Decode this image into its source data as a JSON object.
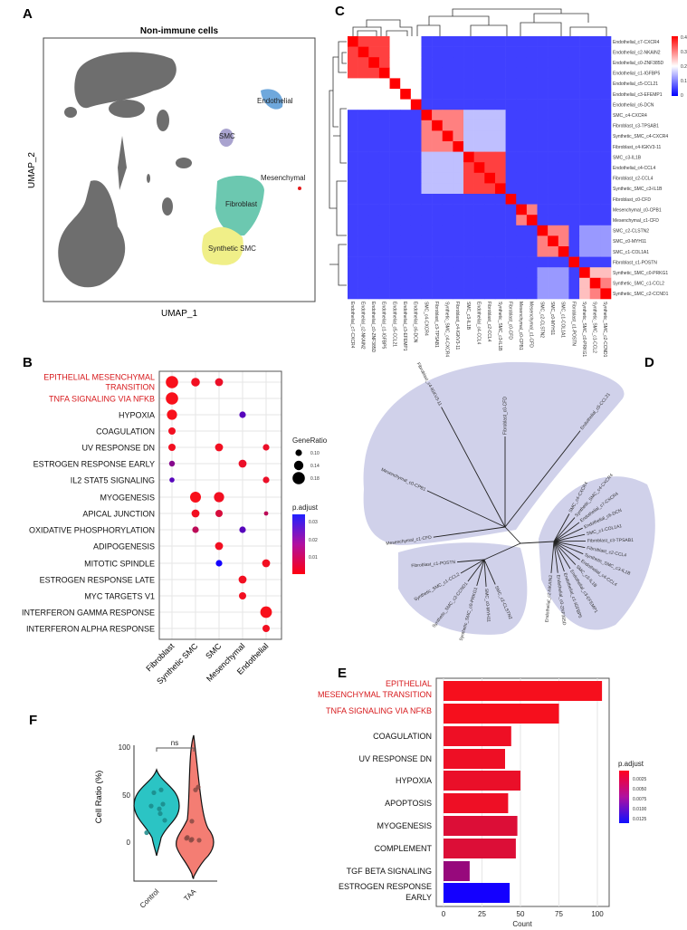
{
  "panels": {
    "a": "A",
    "b": "B",
    "c": "C",
    "d": "D",
    "e": "E",
    "f": "F"
  },
  "umap": {
    "title": "Non-immune cells",
    "xlabel": "UMAP_1",
    "ylabel": "UMAP_2",
    "clusters": [
      "Endothelial",
      "SMC",
      "Mesenchymal",
      "Fibroblast",
      "Synthetic SMC"
    ]
  },
  "chart_data": [
    {
      "type": "scatter",
      "name": "dotplot",
      "columns": [
        "Fibroblast",
        "Synthetic SMC",
        "SMC",
        "Mesenchymal",
        "Endothelial"
      ],
      "rows": [
        "EPITHELIAL MESENCHYMAL",
        "TRANSITION",
        "TNFA SIGNALING VIA NFKB",
        "HYPOXIA",
        "COAGULATION",
        "UV RESPONSE DN",
        "ESTROGEN RESPONSE EARLY",
        "IL2 STAT5 SIGNALING",
        "MYOGENESIS",
        "APICAL JUNCTION",
        "OXIDATIVE PHOSPHORYLATION",
        "ADIPOGENESIS",
        "MITOTIC SPINDLE",
        "ESTROGEN RESPONSE LATE",
        "MYC TARGETS V1",
        "INTERFERON GAMMA RESPONSE",
        "INTERFERON ALPHA RESPONSE"
      ],
      "terms": [
        "EPITHELIAL MESENCHYMAL TRANSITION",
        "TNFA SIGNALING VIA NFKB",
        "HYPOXIA",
        "COAGULATION",
        "UV RESPONSE DN",
        "ESTROGEN RESPONSE EARLY",
        "IL2 STAT5 SIGNALING",
        "MYOGENESIS",
        "APICAL JUNCTION",
        "OXIDATIVE PHOSPHORYLATION",
        "ADIPOGENESIS",
        "MITOTIC SPINDLE",
        "ESTROGEN RESPONSE LATE",
        "MYC TARGETS V1",
        "INTERFERON GAMMA RESPONSE",
        "INTERFERON ALPHA RESPONSE"
      ],
      "points": [
        [
          0,
          0,
          0.18,
          0.001
        ],
        [
          0,
          1,
          0.13,
          0.002
        ],
        [
          0,
          2,
          0.12,
          0.003
        ],
        [
          1,
          0,
          0.18,
          0.001
        ],
        [
          2,
          0,
          0.15,
          0.001
        ],
        [
          2,
          3,
          0.1,
          0.025
        ],
        [
          3,
          0,
          0.11,
          0.002
        ],
        [
          4,
          0,
          0.11,
          0.002
        ],
        [
          4,
          2,
          0.12,
          0.002
        ],
        [
          4,
          4,
          0.1,
          0.003
        ],
        [
          5,
          0,
          0.09,
          0.018
        ],
        [
          5,
          3,
          0.12,
          0.003
        ],
        [
          6,
          0,
          0.08,
          0.025
        ],
        [
          6,
          4,
          0.1,
          0.003
        ],
        [
          7,
          1,
          0.16,
          0.001
        ],
        [
          7,
          2,
          0.15,
          0.002
        ],
        [
          8,
          1,
          0.12,
          0.002
        ],
        [
          8,
          2,
          0.11,
          0.006
        ],
        [
          8,
          4,
          0.07,
          0.01
        ],
        [
          9,
          1,
          0.1,
          0.01
        ],
        [
          9,
          3,
          0.1,
          0.025
        ],
        [
          10,
          2,
          0.12,
          0.002
        ],
        [
          11,
          2,
          0.1,
          0.035
        ],
        [
          11,
          4,
          0.12,
          0.002
        ],
        [
          12,
          3,
          0.12,
          0.002
        ],
        [
          13,
          3,
          0.11,
          0.002
        ],
        [
          14,
          4,
          0.17,
          0.001
        ],
        [
          15,
          4,
          0.11,
          0.002
        ]
      ],
      "legend_size_title": "GeneRatio",
      "legend_sizes": [
        "0.10",
        "0.14",
        "0.18"
      ],
      "legend_color_title": "p.adjust",
      "legend_color_ticks": [
        "0.03",
        "0.02",
        "0.01"
      ],
      "color_range": [
        0,
        0.035
      ]
    },
    {
      "type": "heatmap",
      "name": "correlation",
      "labels": [
        "Endothelial_c7-CXCR4",
        "Endothelial_c2-NKAIN2",
        "Endothelial_c0-ZNF385D",
        "Endothelial_c1-IGFBP5",
        "Endothelial_c5-CCL21",
        "Endothelial_c3-EFEMP1",
        "Endothelial_c6-DCN",
        "SMC_c4-CXCR4",
        "Fibroblast_c3-TPSAB1",
        "Synthetic_SMC_c4-CXCR4",
        "Fibroblast_c4-IGKV3-11",
        "SMC_c3-IL1B",
        "Endothelial_c4-CCL4",
        "Fibroblast_c2-CCL4",
        "Synthetic_SMC_c3-IL1B",
        "Fibroblast_c0-CFD",
        "Mesenchymal_c0-CPB1",
        "Mesenchymal_c1-CFD",
        "SMC_c2-CLSTN2",
        "SMC_c0-MYH11",
        "SMC_c1-COL1A1",
        "Fibroblast_c1-POSTN",
        "Synthetic_SMC_c0-PRKG1",
        "Synthetic_SMC_c1-CCL2",
        "Synthetic_SMC_c2-CCND1"
      ],
      "values": [
        [
          0.4,
          0.35,
          0.35,
          0.35,
          0.2,
          0.2,
          0.2,
          0.05,
          0.05,
          0.05,
          0.05,
          0.05,
          0.05,
          0.05,
          0.05,
          0.05,
          0.05,
          0.05,
          0.05,
          0.05,
          0.05,
          0.05,
          0.05,
          0.05,
          0.05
        ],
        [
          0.35,
          0.4,
          0.35,
          0.35,
          0.2,
          0.2,
          0.2,
          0.05,
          0.05,
          0.05,
          0.05,
          0.05,
          0.05,
          0.05,
          0.05,
          0.05,
          0.05,
          0.05,
          0.05,
          0.05,
          0.05,
          0.05,
          0.05,
          0.05,
          0.05
        ],
        [
          0.35,
          0.35,
          0.4,
          0.35,
          0.2,
          0.2,
          0.2,
          0.05,
          0.05,
          0.05,
          0.05,
          0.05,
          0.05,
          0.05,
          0.05,
          0.05,
          0.05,
          0.05,
          0.05,
          0.05,
          0.05,
          0.05,
          0.05,
          0.05,
          0.05
        ],
        [
          0.35,
          0.35,
          0.35,
          0.4,
          0.2,
          0.2,
          0.2,
          0.05,
          0.05,
          0.05,
          0.05,
          0.05,
          0.05,
          0.05,
          0.05,
          0.05,
          0.05,
          0.05,
          0.05,
          0.05,
          0.05,
          0.05,
          0.05,
          0.05,
          0.05
        ],
        [
          0.2,
          0.2,
          0.2,
          0.2,
          0.4,
          0.2,
          0.2,
          0.05,
          0.05,
          0.05,
          0.05,
          0.05,
          0.05,
          0.05,
          0.05,
          0.05,
          0.05,
          0.05,
          0.05,
          0.05,
          0.05,
          0.05,
          0.05,
          0.05,
          0.05
        ],
        [
          0.2,
          0.2,
          0.2,
          0.2,
          0.2,
          0.4,
          0.2,
          0.05,
          0.05,
          0.05,
          0.05,
          0.05,
          0.05,
          0.05,
          0.05,
          0.05,
          0.05,
          0.05,
          0.05,
          0.05,
          0.05,
          0.05,
          0.05,
          0.05,
          0.05
        ],
        [
          0.2,
          0.2,
          0.2,
          0.2,
          0.2,
          0.2,
          0.4,
          0.05,
          0.05,
          0.05,
          0.05,
          0.05,
          0.05,
          0.05,
          0.05,
          0.05,
          0.05,
          0.05,
          0.05,
          0.05,
          0.05,
          0.05,
          0.05,
          0.05,
          0.05
        ],
        [
          0.05,
          0.05,
          0.05,
          0.05,
          0.05,
          0.05,
          0.05,
          0.4,
          0.3,
          0.3,
          0.3,
          0.15,
          0.15,
          0.15,
          0.15,
          0.05,
          0.05,
          0.05,
          0.05,
          0.05,
          0.05,
          0.05,
          0.05,
          0.05,
          0.05
        ],
        [
          0.05,
          0.05,
          0.05,
          0.05,
          0.05,
          0.05,
          0.05,
          0.3,
          0.4,
          0.3,
          0.3,
          0.15,
          0.15,
          0.15,
          0.15,
          0.05,
          0.05,
          0.05,
          0.05,
          0.05,
          0.05,
          0.05,
          0.05,
          0.05,
          0.05
        ],
        [
          0.05,
          0.05,
          0.05,
          0.05,
          0.05,
          0.05,
          0.05,
          0.3,
          0.3,
          0.4,
          0.3,
          0.15,
          0.15,
          0.15,
          0.15,
          0.05,
          0.05,
          0.05,
          0.05,
          0.05,
          0.05,
          0.05,
          0.05,
          0.05,
          0.05
        ],
        [
          0.05,
          0.05,
          0.05,
          0.05,
          0.05,
          0.05,
          0.05,
          0.3,
          0.3,
          0.3,
          0.4,
          0.15,
          0.15,
          0.15,
          0.15,
          0.05,
          0.05,
          0.05,
          0.05,
          0.05,
          0.05,
          0.05,
          0.05,
          0.05,
          0.05
        ],
        [
          0.05,
          0.05,
          0.05,
          0.05,
          0.05,
          0.05,
          0.05,
          0.15,
          0.15,
          0.15,
          0.15,
          0.4,
          0.35,
          0.35,
          0.35,
          0.05,
          0.05,
          0.05,
          0.05,
          0.05,
          0.05,
          0.05,
          0.05,
          0.05,
          0.05
        ],
        [
          0.05,
          0.05,
          0.05,
          0.05,
          0.05,
          0.05,
          0.05,
          0.15,
          0.15,
          0.15,
          0.15,
          0.35,
          0.4,
          0.35,
          0.35,
          0.05,
          0.05,
          0.05,
          0.05,
          0.05,
          0.05,
          0.05,
          0.05,
          0.05,
          0.05
        ],
        [
          0.05,
          0.05,
          0.05,
          0.05,
          0.05,
          0.05,
          0.05,
          0.15,
          0.15,
          0.15,
          0.15,
          0.35,
          0.35,
          0.4,
          0.35,
          0.05,
          0.05,
          0.05,
          0.05,
          0.05,
          0.05,
          0.05,
          0.05,
          0.05,
          0.05
        ],
        [
          0.05,
          0.05,
          0.05,
          0.05,
          0.05,
          0.05,
          0.05,
          0.15,
          0.15,
          0.15,
          0.15,
          0.35,
          0.35,
          0.35,
          0.4,
          0.05,
          0.05,
          0.05,
          0.05,
          0.05,
          0.05,
          0.05,
          0.05,
          0.05,
          0.05
        ],
        [
          0.05,
          0.05,
          0.05,
          0.05,
          0.05,
          0.05,
          0.05,
          0.05,
          0.05,
          0.05,
          0.05,
          0.05,
          0.05,
          0.05,
          0.05,
          0.4,
          0.05,
          0.05,
          0.05,
          0.05,
          0.05,
          0.05,
          0.05,
          0.05,
          0.05
        ],
        [
          0.05,
          0.05,
          0.05,
          0.05,
          0.05,
          0.05,
          0.05,
          0.05,
          0.05,
          0.05,
          0.05,
          0.05,
          0.05,
          0.05,
          0.05,
          0.05,
          0.4,
          0.3,
          0.05,
          0.05,
          0.05,
          0.05,
          0.05,
          0.05,
          0.05
        ],
        [
          0.05,
          0.05,
          0.05,
          0.05,
          0.05,
          0.05,
          0.05,
          0.05,
          0.05,
          0.05,
          0.05,
          0.05,
          0.05,
          0.05,
          0.05,
          0.05,
          0.3,
          0.4,
          0.05,
          0.05,
          0.05,
          0.05,
          0.05,
          0.05,
          0.05
        ],
        [
          0.05,
          0.05,
          0.05,
          0.05,
          0.05,
          0.05,
          0.05,
          0.05,
          0.05,
          0.05,
          0.05,
          0.05,
          0.05,
          0.05,
          0.05,
          0.05,
          0.05,
          0.05,
          0.4,
          0.3,
          0.3,
          0.05,
          0.12,
          0.12,
          0.12
        ],
        [
          0.05,
          0.05,
          0.05,
          0.05,
          0.05,
          0.05,
          0.05,
          0.05,
          0.05,
          0.05,
          0.05,
          0.05,
          0.05,
          0.05,
          0.05,
          0.05,
          0.05,
          0.05,
          0.3,
          0.4,
          0.3,
          0.05,
          0.12,
          0.12,
          0.12
        ],
        [
          0.05,
          0.05,
          0.05,
          0.05,
          0.05,
          0.05,
          0.05,
          0.05,
          0.05,
          0.05,
          0.05,
          0.05,
          0.05,
          0.05,
          0.05,
          0.05,
          0.05,
          0.05,
          0.3,
          0.3,
          0.4,
          0.05,
          0.12,
          0.12,
          0.12
        ],
        [
          0.05,
          0.05,
          0.05,
          0.05,
          0.05,
          0.05,
          0.05,
          0.05,
          0.05,
          0.05,
          0.05,
          0.05,
          0.05,
          0.05,
          0.05,
          0.05,
          0.05,
          0.05,
          0.05,
          0.05,
          0.05,
          0.4,
          0.05,
          0.05,
          0.05
        ],
        [
          0.05,
          0.05,
          0.05,
          0.05,
          0.05,
          0.05,
          0.05,
          0.05,
          0.05,
          0.05,
          0.05,
          0.05,
          0.05,
          0.05,
          0.05,
          0.05,
          0.05,
          0.05,
          0.12,
          0.12,
          0.12,
          0.05,
          0.4,
          0.25,
          0.25
        ],
        [
          0.05,
          0.05,
          0.05,
          0.05,
          0.05,
          0.05,
          0.05,
          0.05,
          0.05,
          0.05,
          0.05,
          0.05,
          0.05,
          0.05,
          0.05,
          0.05,
          0.05,
          0.05,
          0.12,
          0.12,
          0.12,
          0.05,
          0.25,
          0.4,
          0.3
        ],
        [
          0.05,
          0.05,
          0.05,
          0.05,
          0.05,
          0.05,
          0.05,
          0.05,
          0.05,
          0.05,
          0.05,
          0.05,
          0.05,
          0.05,
          0.05,
          0.05,
          0.05,
          0.05,
          0.12,
          0.12,
          0.12,
          0.05,
          0.25,
          0.3,
          0.4
        ]
      ],
      "legend_ticks": [
        "0.4",
        "0.3",
        "0.2",
        "0.1",
        "0"
      ],
      "range": [
        0,
        0.4
      ]
    },
    {
      "type": "bar",
      "name": "enrichment",
      "categories": [
        "EPITHELIAL MESENCHYMAL TRANSITION",
        "TNFA SIGNALING VIA NFKB",
        "COAGULATION",
        "UV RESPONSE DN",
        "HYPOXIA",
        "APOPTOSIS",
        "MYOGENESIS",
        "COMPLEMENT",
        "TGF BETA SIGNALING",
        "ESTROGEN RESPONSE EARLY"
      ],
      "display": [
        "EPITHELIAL",
        "MESENCHYMAL TRANSITION",
        "TNFA SIGNALING VIA NFKB",
        "COAGULATION",
        "UV RESPONSE DN",
        "HYPOXIA",
        "APOPTOSIS",
        "MYOGENESIS",
        "COMPLEMENT",
        "TGF BETA SIGNALING",
        "ESTROGEN RESPONSE",
        "EARLY"
      ],
      "values": [
        103,
        75,
        44,
        40,
        50,
        42,
        48,
        47,
        17,
        43
      ],
      "p_adjust": [
        0.0005,
        0.0005,
        0.001,
        0.001,
        0.0012,
        0.001,
        0.002,
        0.002,
        0.006,
        0.0135
      ],
      "xlabel": "Count",
      "xticks": [
        "0",
        "25",
        "50",
        "75",
        "100"
      ],
      "xlim": [
        0,
        107
      ],
      "legend_title": "p.adjust",
      "legend_ticks": [
        "0.0025",
        "0.0050",
        "0.0075",
        "0.0100",
        "0.0125"
      ]
    },
    {
      "type": "scatter",
      "name": "violin",
      "ylabel": "Cell Ratio (%)",
      "yticks": [
        "100",
        "50",
        "0"
      ],
      "groups": [
        "Control",
        "TAA"
      ],
      "annotation": "ns",
      "control": [
        55,
        52,
        40,
        38,
        35,
        30,
        23,
        10
      ],
      "taa": [
        58,
        55,
        22,
        5,
        4,
        3,
        2,
        2
      ]
    }
  ],
  "tree": {
    "labels": [
      "Fibroblast_c4-IGKV3-11",
      "Fibroblast_c0-CFD",
      "Endothelial_c5-CCL21",
      "Mesenchymal_c0-CPB1",
      "Mesenchymal_c1-CFD",
      "Fibroblast_c1-POSTN",
      "Synthetic_SMC_c1-CCL2",
      "Synthetic_SMC_c2-CCND1",
      "Synthetic_SMC_c0-PRKG1",
      "SMC_c0-MYH11",
      "SMC_c2-CLSTN2",
      "Endothelial_c2-NKAIN2",
      "Endothelial_c0-ZNF385D",
      "Endothelial_c1-IGFBP5",
      "Endothelial_c3-EFEMP1",
      "SMC_c3-IL1B",
      "Endothelial_c4-CCL4",
      "Synthetic_SMC_c3-IL1B",
      "Fibroblast_c2-CCL4",
      "Fibroblast_c3-TPSAB1",
      "SMC_c1-COL1A1",
      "Endothelial_c6-DCN",
      "Endothelial_c7-CXCR4",
      "Synthetic_SMC_c4-CXCR4",
      "SMC_c4-CXCR4"
    ]
  }
}
